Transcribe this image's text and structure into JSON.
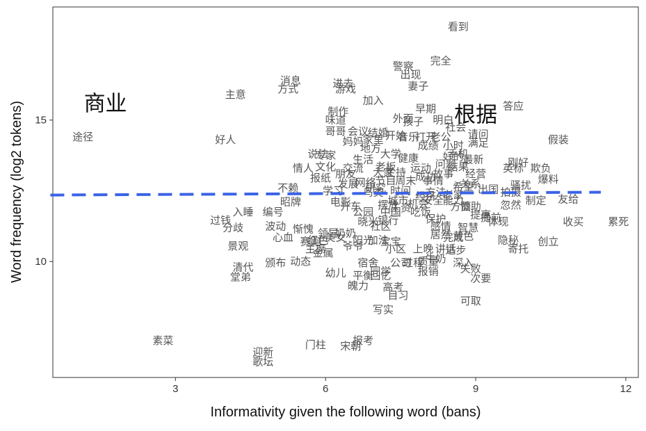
{
  "chart_data": {
    "type": "scatter",
    "title": "",
    "xlabel": "Informativity given the following word (bans)",
    "ylabel": "Word frequency (log2 tokens)",
    "xlim": [
      0.55,
      12.25
    ],
    "ylim": [
      5.9,
      19.0
    ],
    "xticks": [
      3,
      6,
      9,
      12
    ],
    "yticks": [
      10,
      15
    ],
    "grid": false,
    "trend_line": {
      "x": [
        0.5,
        11.5
      ],
      "y": [
        12.35,
        12.45
      ],
      "color": "#3b63e6",
      "style": "dashed"
    },
    "highlighted": [
      {
        "label": "商业",
        "x": 1.6,
        "y": 15.6
      },
      {
        "label": "根据",
        "x": 9.0,
        "y": 15.2
      }
    ],
    "points": [
      {
        "label": "看到",
        "x": 8.65,
        "y": 18.3
      },
      {
        "label": "警察",
        "x": 7.55,
        "y": 16.9
      },
      {
        "label": "完全",
        "x": 8.3,
        "y": 17.1
      },
      {
        "label": "出现",
        "x": 7.7,
        "y": 16.6
      },
      {
        "label": "消息",
        "x": 5.3,
        "y": 16.4
      },
      {
        "label": "进去",
        "x": 6.35,
        "y": 16.3
      },
      {
        "label": "妻子",
        "x": 7.85,
        "y": 16.2
      },
      {
        "label": "方式",
        "x": 5.25,
        "y": 16.1
      },
      {
        "label": "游戏",
        "x": 6.4,
        "y": 16.1
      },
      {
        "label": "主意",
        "x": 4.2,
        "y": 15.9
      },
      {
        "label": "加入",
        "x": 6.95,
        "y": 15.7
      },
      {
        "label": "答应",
        "x": 9.75,
        "y": 15.5
      },
      {
        "label": "早期",
        "x": 8.0,
        "y": 15.4
      },
      {
        "label": "制作",
        "x": 6.25,
        "y": 15.3
      },
      {
        "label": "味道",
        "x": 6.2,
        "y": 15.0
      },
      {
        "label": "请问",
        "x": 9.05,
        "y": 14.5
      },
      {
        "label": "假装",
        "x": 10.65,
        "y": 14.3
      },
      {
        "label": "途径",
        "x": 1.15,
        "y": 14.4
      },
      {
        "label": "好人",
        "x": 4.0,
        "y": 14.3
      },
      {
        "label": "满足",
        "x": 9.05,
        "y": 14.2
      },
      {
        "label": "说法",
        "x": 5.85,
        "y": 13.8
      },
      {
        "label": "最新",
        "x": 8.95,
        "y": 13.6
      },
      {
        "label": "刚好",
        "x": 9.85,
        "y": 13.5
      },
      {
        "label": "情人",
        "x": 5.55,
        "y": 13.3
      },
      {
        "label": "英标",
        "x": 9.75,
        "y": 13.3
      },
      {
        "label": "欺负",
        "x": 10.3,
        "y": 13.3
      },
      {
        "label": "经营",
        "x": 9.0,
        "y": 13.1
      },
      {
        "label": "报纸",
        "x": 5.9,
        "y": 12.95
      },
      {
        "label": "爆料",
        "x": 10.45,
        "y": 12.9
      },
      {
        "label": "骚扰",
        "x": 9.9,
        "y": 12.7
      },
      {
        "label": "不赖",
        "x": 5.25,
        "y": 12.6
      },
      {
        "label": "拍摄",
        "x": 9.7,
        "y": 12.45
      },
      {
        "label": "友给",
        "x": 10.85,
        "y": 12.2
      },
      {
        "label": "制定",
        "x": 10.2,
        "y": 12.15
      },
      {
        "label": "忽然",
        "x": 9.7,
        "y": 12.0
      },
      {
        "label": "昭牌",
        "x": 5.3,
        "y": 12.1
      },
      {
        "label": "入睡",
        "x": 4.35,
        "y": 11.75
      },
      {
        "label": "编号",
        "x": 4.95,
        "y": 11.75
      },
      {
        "label": "过钱",
        "x": 3.9,
        "y": 11.45
      },
      {
        "label": "体现",
        "x": 9.45,
        "y": 11.4
      },
      {
        "label": "收买",
        "x": 10.95,
        "y": 11.4
      },
      {
        "label": "累死",
        "x": 11.85,
        "y": 11.4
      },
      {
        "label": "分歧",
        "x": 4.15,
        "y": 11.2
      },
      {
        "label": "波动",
        "x": 5.0,
        "y": 11.25
      },
      {
        "label": "惭愧",
        "x": 5.55,
        "y": 11.15
      },
      {
        "label": "隐秘",
        "x": 9.65,
        "y": 10.75
      },
      {
        "label": "创立",
        "x": 10.45,
        "y": 10.7
      },
      {
        "label": "景观",
        "x": 4.25,
        "y": 10.55
      },
      {
        "label": "寄托",
        "x": 9.85,
        "y": 10.45
      },
      {
        "label": "幼儿",
        "x": 6.2,
        "y": 9.6
      },
      {
        "label": "报销",
        "x": 8.05,
        "y": 9.65
      },
      {
        "label": "堂弟",
        "x": 4.3,
        "y": 9.45
      },
      {
        "label": "次要",
        "x": 9.1,
        "y": 9.4
      },
      {
        "label": "魄力",
        "x": 6.65,
        "y": 9.15
      },
      {
        "label": "高考",
        "x": 7.35,
        "y": 9.1
      },
      {
        "label": "目习",
        "x": 7.45,
        "y": 8.8
      },
      {
        "label": "可取",
        "x": 8.9,
        "y": 8.6
      },
      {
        "label": "写实",
        "x": 7.15,
        "y": 8.3
      },
      {
        "label": "素菜",
        "x": 2.75,
        "y": 7.2
      },
      {
        "label": "报考",
        "x": 6.75,
        "y": 7.2
      },
      {
        "label": "门柱",
        "x": 5.8,
        "y": 7.05
      },
      {
        "label": "宋朝",
        "x": 6.5,
        "y": 7.0
      },
      {
        "label": "迎新",
        "x": 4.75,
        "y": 6.8
      },
      {
        "label": "歌坛",
        "x": 4.75,
        "y": 6.45
      },
      {
        "label": "小区",
        "x": 7.4,
        "y": 10.45
      },
      {
        "label": "上晚",
        "x": 7.95,
        "y": 10.45
      },
      {
        "label": "社区",
        "x": 7.1,
        "y": 11.25
      },
      {
        "label": "加法",
        "x": 7.05,
        "y": 10.75
      },
      {
        "label": "晓米",
        "x": 6.85,
        "y": 11.4
      },
      {
        "label": "居然",
        "x": 8.3,
        "y": 10.95
      },
      {
        "label": "黄色",
        "x": 8.75,
        "y": 10.9
      },
      {
        "label": "智慧",
        "x": 8.85,
        "y": 11.2
      },
      {
        "label": "赞助",
        "x": 8.9,
        "y": 11.95
      },
      {
        "label": "摆放",
        "x": 7.25,
        "y": 12.0
      },
      {
        "label": "鸟类",
        "x": 6.95,
        "y": 12.45
      },
      {
        "label": "大家",
        "x": 7.15,
        "y": 13.15
      },
      {
        "label": "主持",
        "x": 7.4,
        "y": 13.15
      },
      {
        "label": "打开",
        "x": 8.0,
        "y": 14.4
      },
      {
        "label": "老公",
        "x": 8.3,
        "y": 14.4
      },
      {
        "label": "开始",
        "x": 7.4,
        "y": 14.45
      },
      {
        "label": "会议",
        "x": 6.65,
        "y": 14.6
      },
      {
        "label": "哥哥",
        "x": 6.2,
        "y": 14.6
      },
      {
        "label": "结婚",
        "x": 7.05,
        "y": 14.55
      },
      {
        "label": "大学",
        "x": 7.3,
        "y": 13.8
      },
      {
        "label": "文化",
        "x": 6.0,
        "y": 13.35
      },
      {
        "label": "交流",
        "x": 6.55,
        "y": 13.3
      },
      {
        "label": "地方",
        "x": 6.9,
        "y": 14.0
      },
      {
        "label": "专家",
        "x": 6.0,
        "y": 13.75
      },
      {
        "label": "好的",
        "x": 8.55,
        "y": 13.7
      },
      {
        "label": "成功",
        "x": 8.0,
        "y": 13.0
      },
      {
        "label": "研究",
        "x": 7.0,
        "y": 12.6
      },
      {
        "label": "安全",
        "x": 8.15,
        "y": 12.15
      },
      {
        "label": "电影",
        "x": 6.3,
        "y": 12.1
      },
      {
        "label": "开车",
        "x": 6.5,
        "y": 11.95
      },
      {
        "label": "孩子",
        "x": 7.75,
        "y": 14.95
      },
      {
        "label": "明白",
        "x": 8.35,
        "y": 15.0
      },
      {
        "label": "社会",
        "x": 8.6,
        "y": 14.75
      },
      {
        "label": "结果",
        "x": 8.65,
        "y": 13.35
      },
      {
        "label": "音乐",
        "x": 7.65,
        "y": 14.4
      },
      {
        "label": "问题",
        "x": 8.4,
        "y": 13.45
      },
      {
        "label": "事情",
        "x": 8.15,
        "y": 12.85
      },
      {
        "label": "朋友",
        "x": 6.4,
        "y": 13.1
      },
      {
        "label": "时间",
        "x": 7.5,
        "y": 12.5
      },
      {
        "label": "方法",
        "x": 8.2,
        "y": 12.45
      },
      {
        "label": "机会",
        "x": 7.85,
        "y": 12.05
      },
      {
        "label": "能力",
        "x": 8.55,
        "y": 12.15
      },
      {
        "label": "工资",
        "x": 7.5,
        "y": 11.9
      },
      {
        "label": "学习",
        "x": 6.15,
        "y": 12.5
      },
      {
        "label": "发展",
        "x": 6.45,
        "y": 12.75
      },
      {
        "label": "希望",
        "x": 8.75,
        "y": 12.65
      },
      {
        "label": "关系",
        "x": 8.9,
        "y": 12.75
      },
      {
        "label": "老板",
        "x": 7.2,
        "y": 13.35
      },
      {
        "label": "生活",
        "x": 6.75,
        "y": 13.6
      },
      {
        "label": "周末",
        "x": 7.6,
        "y": 12.85
      },
      {
        "label": "出国",
        "x": 9.25,
        "y": 12.55
      },
      {
        "label": "老家",
        "x": 8.55,
        "y": 12.35
      },
      {
        "label": "阳光",
        "x": 6.75,
        "y": 10.75
      },
      {
        "label": "美女",
        "x": 6.2,
        "y": 10.85
      },
      {
        "label": "红色",
        "x": 5.85,
        "y": 10.75
      },
      {
        "label": "心血",
        "x": 5.15,
        "y": 10.85
      },
      {
        "label": "赛跑",
        "x": 5.7,
        "y": 10.7
      },
      {
        "label": "主席",
        "x": 5.8,
        "y": 10.45
      },
      {
        "label": "金属",
        "x": 5.95,
        "y": 10.3
      },
      {
        "label": "动态",
        "x": 5.5,
        "y": 10.0
      },
      {
        "label": "颁布",
        "x": 5.0,
        "y": 9.95
      },
      {
        "label": "清代",
        "x": 4.35,
        "y": 9.8
      },
      {
        "label": "公司",
        "x": 7.5,
        "y": 9.95
      },
      {
        "label": "过程",
        "x": 7.75,
        "y": 9.95
      },
      {
        "label": "宿舍",
        "x": 6.85,
        "y": 9.95
      },
      {
        "label": "同学",
        "x": 7.1,
        "y": 9.65
      },
      {
        "label": "回忆",
        "x": 7.1,
        "y": 9.5
      },
      {
        "label": "平衡",
        "x": 6.75,
        "y": 9.5
      },
      {
        "label": "质量",
        "x": 8.05,
        "y": 10.0
      },
      {
        "label": "讲话",
        "x": 8.4,
        "y": 10.45
      },
      {
        "label": "进步",
        "x": 8.6,
        "y": 10.4
      },
      {
        "label": "深入",
        "x": 8.75,
        "y": 9.95
      },
      {
        "label": "失败",
        "x": 8.9,
        "y": 9.75
      },
      {
        "label": "完成",
        "x": 8.55,
        "y": 10.85
      },
      {
        "label": "提高",
        "x": 9.1,
        "y": 11.65
      },
      {
        "label": "提前",
        "x": 9.3,
        "y": 11.55
      },
      {
        "label": "方面",
        "x": 8.7,
        "y": 11.95
      },
      {
        "label": "吃饭",
        "x": 7.9,
        "y": 11.75
      },
      {
        "label": "中国",
        "x": 7.3,
        "y": 11.75
      },
      {
        "label": "公园",
        "x": 6.75,
        "y": 11.75
      },
      {
        "label": "奶奶",
        "x": 6.4,
        "y": 11.0
      },
      {
        "label": "领导",
        "x": 6.05,
        "y": 11.0
      },
      {
        "label": "爷爷",
        "x": 6.55,
        "y": 10.55
      },
      {
        "label": "宝宝",
        "x": 7.3,
        "y": 10.7
      },
      {
        "label": "牛奶",
        "x": 8.2,
        "y": 10.1
      },
      {
        "label": "保护",
        "x": 8.2,
        "y": 11.5
      },
      {
        "label": "经济",
        "x": 8.0,
        "y": 12.3
      },
      {
        "label": "运动",
        "x": 7.9,
        "y": 13.3
      },
      {
        "label": "健康",
        "x": 7.65,
        "y": 13.65
      },
      {
        "label": "成绩",
        "x": 8.05,
        "y": 14.1
      },
      {
        "label": "小时",
        "x": 8.55,
        "y": 14.1
      },
      {
        "label": "家里",
        "x": 6.95,
        "y": 14.3
      },
      {
        "label": "妈妈",
        "x": 6.55,
        "y": 14.25
      },
      {
        "label": "外面",
        "x": 7.55,
        "y": 15.05
      },
      {
        "label": "故事",
        "x": 8.35,
        "y": 13.1
      },
      {
        "label": "手机",
        "x": 8.65,
        "y": 13.8
      },
      {
        "label": "节目",
        "x": 7.2,
        "y": 12.85
      },
      {
        "label": "网络",
        "x": 6.8,
        "y": 12.8
      },
      {
        "label": "城市",
        "x": 7.45,
        "y": 12.15
      },
      {
        "label": "银行",
        "x": 7.25,
        "y": 11.45
      },
      {
        "label": "感情",
        "x": 8.3,
        "y": 11.25
      }
    ]
  }
}
